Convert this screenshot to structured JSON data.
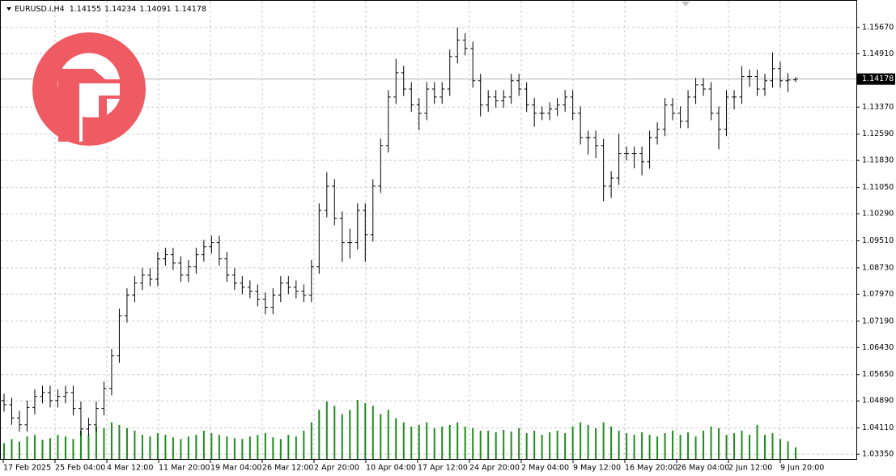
{
  "chart_data": {
    "type": "ohlc",
    "symbol": "EURUSD.i,H4",
    "color": "#000000",
    "open": [
      1.049,
      1.0478,
      1.044,
      1.042,
      1.047,
      1.0502,
      1.0513,
      1.049,
      1.0502,
      1.0513,
      1.0467,
      1.0408,
      1.042,
      1.0467,
      1.0525,
      1.0619,
      1.0735,
      1.0794,
      1.0829,
      1.0852,
      1.084,
      1.0899,
      1.0911,
      1.0887,
      1.0852,
      1.0876,
      1.0911,
      1.0934,
      1.0946,
      1.0899,
      1.0852,
      1.0829,
      1.0817,
      1.0805,
      1.0782,
      1.0759,
      1.0794,
      1.0829,
      1.0817,
      1.0805,
      1.0794,
      1.0876,
      1.1039,
      1.1109,
      1.1016,
      1.0946,
      1.0946,
      1.1039,
      1.0969,
      1.1109,
      1.1226,
      1.1366,
      1.1436,
      1.1389,
      1.1343,
      1.1319,
      1.1389,
      1.1366,
      1.1389,
      1.1483,
      1.153,
      1.1506,
      1.1413,
      1.1343,
      1.1366,
      1.1355,
      1.1366,
      1.1413,
      1.1389,
      1.1343,
      1.1319,
      1.1319,
      1.1331,
      1.1343,
      1.1366,
      1.1319,
      1.1249,
      1.1249,
      1.1226,
      1.1109,
      1.1132,
      1.1203,
      1.1203,
      1.1203,
      1.1179,
      1.1249,
      1.1273,
      1.1343,
      1.1319,
      1.1296,
      1.1366,
      1.1401,
      1.1389,
      1.1319,
      1.1273,
      1.1366,
      1.1366,
      1.1425,
      1.1425,
      1.1389,
      1.1413,
      1.1448,
      1.1413,
      1.14155
    ],
    "high": [
      1.051,
      1.0498,
      1.046,
      1.049,
      1.0522,
      1.0533,
      1.0533,
      1.0522,
      1.0533,
      1.0533,
      1.0487,
      1.044,
      1.0487,
      1.0545,
      1.0639,
      1.0755,
      1.0814,
      1.0849,
      1.0872,
      1.0872,
      1.0919,
      1.0931,
      1.0931,
      1.0907,
      1.0896,
      1.0931,
      1.0954,
      1.0966,
      1.0966,
      1.0919,
      1.0872,
      1.0849,
      1.0837,
      1.0825,
      1.0802,
      1.0814,
      1.0849,
      1.0849,
      1.0837,
      1.0825,
      1.0896,
      1.1059,
      1.1149,
      1.1129,
      1.1036,
      1.0986,
      1.1059,
      1.1059,
      1.1129,
      1.1246,
      1.1386,
      1.1476,
      1.1456,
      1.1409,
      1.1363,
      1.1409,
      1.1409,
      1.1409,
      1.1503,
      1.1567,
      1.155,
      1.1526,
      1.1433,
      1.1386,
      1.1386,
      1.1386,
      1.1433,
      1.1433,
      1.1409,
      1.1363,
      1.1339,
      1.1351,
      1.1363,
      1.1386,
      1.1386,
      1.1339,
      1.1269,
      1.1269,
      1.1246,
      1.1152,
      1.126,
      1.1223,
      1.1223,
      1.1223,
      1.1269,
      1.1293,
      1.1363,
      1.1363,
      1.1339,
      1.1386,
      1.1421,
      1.1421,
      1.1409,
      1.1339,
      1.1386,
      1.1386,
      1.1455,
      1.1445,
      1.1445,
      1.1433,
      1.1495,
      1.1468,
      1.1435,
      1.14234
    ],
    "low": [
      1.0458,
      1.042,
      1.04,
      1.04,
      1.045,
      1.0482,
      1.047,
      1.047,
      1.0482,
      1.0447,
      1.0388,
      1.0388,
      1.04,
      1.0447,
      1.0505,
      1.0599,
      1.0715,
      1.0774,
      1.0809,
      1.082,
      1.082,
      1.0879,
      1.0867,
      1.0832,
      1.0832,
      1.0856,
      1.0891,
      1.0914,
      1.0879,
      1.0832,
      1.0809,
      1.0797,
      1.0785,
      1.0762,
      1.0739,
      1.0739,
      1.0774,
      1.0797,
      1.0785,
      1.0774,
      1.0774,
      1.0856,
      1.1019,
      1.0996,
      1.089,
      1.09,
      1.0926,
      1.089,
      1.0949,
      1.1089,
      1.1206,
      1.1346,
      1.1369,
      1.1323,
      1.127,
      1.1299,
      1.1346,
      1.1346,
      1.1369,
      1.1463,
      1.1486,
      1.1393,
      1.131,
      1.1323,
      1.1335,
      1.1335,
      1.1346,
      1.1369,
      1.1323,
      1.128,
      1.1299,
      1.1299,
      1.1311,
      1.1323,
      1.1299,
      1.1229,
      1.12,
      1.119,
      1.1065,
      1.1075,
      1.1112,
      1.1183,
      1.116,
      1.114,
      1.1159,
      1.1229,
      1.1253,
      1.1299,
      1.1276,
      1.1276,
      1.1346,
      1.1369,
      1.1299,
      1.1215,
      1.1253,
      1.133,
      1.1346,
      1.1395,
      1.1369,
      1.1369,
      1.1393,
      1.1393,
      1.138,
      1.14091
    ],
    "close": [
      1.0478,
      1.044,
      1.042,
      1.047,
      1.0502,
      1.0513,
      1.049,
      1.0502,
      1.0513,
      1.0467,
      1.0408,
      1.042,
      1.0467,
      1.0525,
      1.0619,
      1.0735,
      1.0794,
      1.0829,
      1.0852,
      1.084,
      1.0899,
      1.0911,
      1.0887,
      1.0852,
      1.0876,
      1.0911,
      1.0934,
      1.0946,
      1.0899,
      1.0852,
      1.0829,
      1.0817,
      1.0805,
      1.0782,
      1.0759,
      1.0794,
      1.0829,
      1.0817,
      1.0805,
      1.0794,
      1.0876,
      1.1039,
      1.1109,
      1.1016,
      1.0946,
      1.0946,
      1.1039,
      1.0969,
      1.1109,
      1.1226,
      1.1366,
      1.1436,
      1.1389,
      1.1343,
      1.1319,
      1.1389,
      1.1366,
      1.1389,
      1.1483,
      1.153,
      1.1506,
      1.1413,
      1.1343,
      1.1366,
      1.1355,
      1.1366,
      1.1413,
      1.1389,
      1.1343,
      1.1319,
      1.1319,
      1.1331,
      1.1343,
      1.1366,
      1.1319,
      1.1249,
      1.1249,
      1.1226,
      1.1109,
      1.1132,
      1.1203,
      1.1203,
      1.1203,
      1.1179,
      1.1249,
      1.1273,
      1.1343,
      1.1319,
      1.1296,
      1.1366,
      1.1401,
      1.1389,
      1.1319,
      1.1273,
      1.1366,
      1.1366,
      1.1425,
      1.1425,
      1.1389,
      1.1413,
      1.1448,
      1.1413,
      1.1415,
      1.14178
    ],
    "volume": {
      "color": "#1e8c1e",
      "values": [
        20000,
        25000,
        22000,
        28000,
        30000,
        24000,
        26000,
        30000,
        28000,
        25000,
        35000,
        30000,
        40000,
        38000,
        45000,
        42000,
        38000,
        35000,
        30000,
        28000,
        32000,
        30000,
        27000,
        25000,
        28000,
        30000,
        35000,
        32000,
        30000,
        28000,
        26000,
        25000,
        28000,
        30000,
        32000,
        27000,
        25000,
        30000,
        28000,
        35000,
        45000,
        60000,
        70000,
        65000,
        55000,
        60000,
        72000,
        68000,
        65000,
        55000,
        60000,
        50000,
        45000,
        40000,
        42000,
        45000,
        38000,
        40000,
        42000,
        45000,
        40000,
        38000,
        35000,
        35000,
        33000,
        36000,
        34000,
        38000,
        32000,
        35000,
        30000,
        33000,
        35000,
        32000,
        40000,
        45000,
        42000,
        38000,
        45000,
        40000,
        35000,
        32000,
        30000,
        33000,
        30000,
        28000,
        32000,
        35000,
        30000,
        33000,
        28000,
        35000,
        40000,
        38000,
        30000,
        32000,
        35000,
        30000,
        42000,
        30000,
        32000,
        25000,
        22000,
        15000
      ]
    },
    "ylim": [
      1.0319,
      1.1646
    ],
    "yticks": [
      {
        "value": 1.1567,
        "label": "1.15670"
      },
      {
        "value": 1.1491,
        "label": "1.14910"
      },
      {
        "value": 1.1337,
        "label": "1.13370"
      },
      {
        "value": 1.1259,
        "label": "1.12590"
      },
      {
        "value": 1.1183,
        "label": "1.11830"
      },
      {
        "value": 1.1105,
        "label": "1.11050"
      },
      {
        "value": 1.1029,
        "label": "1.10290"
      },
      {
        "value": 1.0951,
        "label": "1.09510"
      },
      {
        "value": 1.0873,
        "label": "1.08730"
      },
      {
        "value": 1.0797,
        "label": "1.07970"
      },
      {
        "value": 1.0719,
        "label": "1.07190"
      },
      {
        "value": 1.0643,
        "label": "1.06430"
      },
      {
        "value": 1.0565,
        "label": "1.05650"
      },
      {
        "value": 1.0489,
        "label": "1.04890"
      },
      {
        "value": 1.0411,
        "label": "1.04110"
      },
      {
        "value": 1.0335,
        "label": "1.03350"
      }
    ],
    "time_labels": [
      "17 Feb 2025",
      "25 Feb 04:00",
      "4 Mar 12:00",
      "11 Mar 20:00",
      "19 Mar 04:00",
      "26 Mar 12:00",
      "2 Apr 20:00",
      "10 Apr 04:00",
      "17 Apr 12:00",
      "24 Apr 20:00",
      "2 May 04:00",
      "9 May 12:00",
      "16 May 20:00",
      "26 May 04:00",
      "2 Jun 12:00",
      "9 Jun 20:00"
    ],
    "grid": true
  }
}
